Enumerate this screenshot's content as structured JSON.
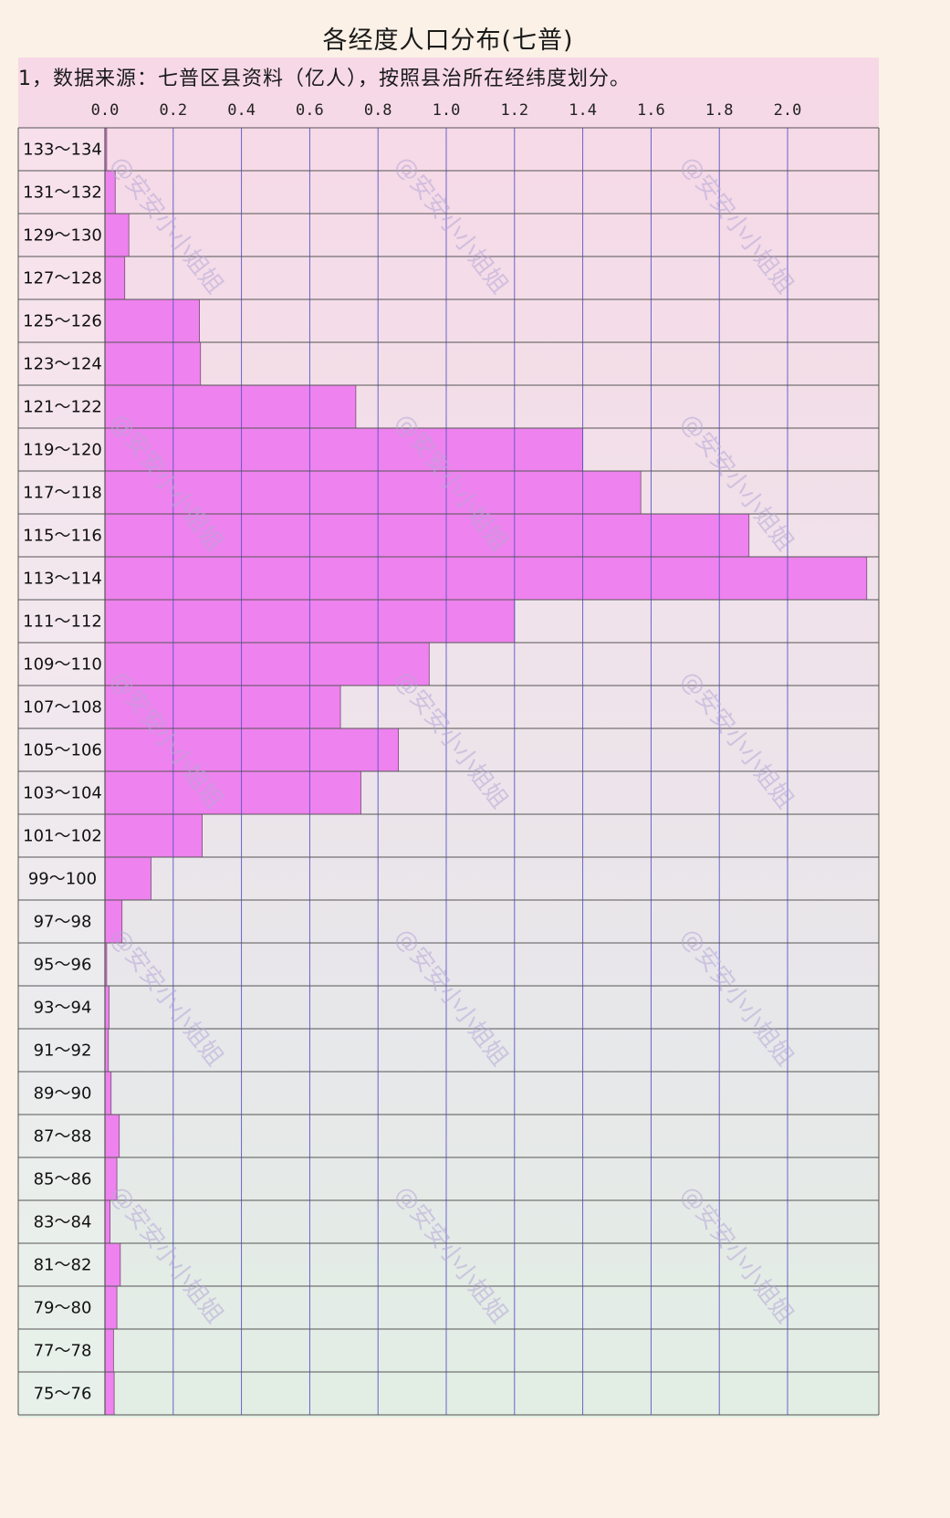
{
  "title": "各经度人口分布(七普)",
  "subtitle": "1，数据来源：七普区县资料（亿人），按照县治所在经纬度划分。",
  "watermark": "@安安小小姐姐",
  "colors": {
    "bar": "#ee82ee",
    "bar_stroke": "#7a4a7a",
    "grid": "#5b55c8",
    "row_line": "#555555"
  },
  "chart_data": {
    "type": "bar",
    "orientation": "horizontal",
    "xlim": [
      0,
      2.27
    ],
    "x_ticks": [
      "0.0",
      "0.2",
      "0.4",
      "0.6",
      "0.8",
      "1.0",
      "1.2",
      "1.4",
      "1.6",
      "1.8",
      "2.0"
    ],
    "categories": [
      "133～134",
      "131～132",
      "129～130",
      "127～128",
      "125～126",
      "123～124",
      "121～122",
      "119～120",
      "117～118",
      "115～116",
      "113～114",
      "111～112",
      "109～110",
      "107～108",
      "105～106",
      "103～104",
      "101～102",
      "99～100",
      "97～98",
      "95～96",
      "93～94",
      "91～92",
      "89～90",
      "87～88",
      "85～86",
      "83～84",
      "81～82",
      "79～80",
      "77～78",
      "75～76"
    ],
    "values": [
      0.005,
      0.03,
      0.07,
      0.058,
      0.277,
      0.28,
      0.735,
      1.4,
      1.57,
      1.887,
      2.232,
      1.2,
      0.95,
      0.69,
      0.86,
      0.75,
      0.285,
      0.135,
      0.05,
      0.005,
      0.012,
      0.01,
      0.018,
      0.042,
      0.035,
      0.015,
      0.045,
      0.035,
      0.025,
      0.027
    ]
  }
}
